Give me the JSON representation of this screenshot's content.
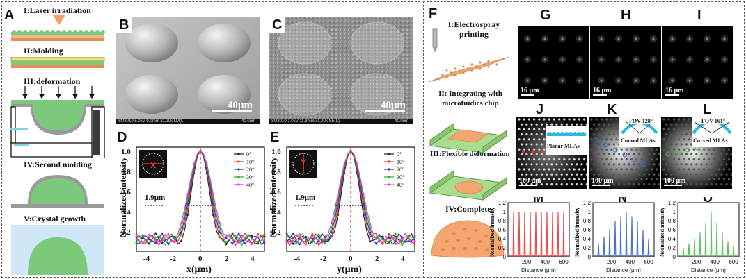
{
  "left_panel": {
    "label_A": "A",
    "steps": [
      "I:Laser irradiation",
      "II:Molding",
      "III:deformation",
      "IV:Second molding",
      "V:Crystal growth"
    ]
  },
  "sem": {
    "label_B": "B",
    "label_C": "C",
    "scale_B": "40μm",
    "scale_C": "40μm",
    "footer_B": "SU8010 5.0kV 9.0mm x1.20k LM(L)",
    "footer_B_right": "40.0um",
    "footer_C": "SU8010 1.0kV 11.3mm x1.20k SE(L)",
    "footer_C_right": "40.0um"
  },
  "intensity_plots": {
    "label_D": "D",
    "label_E": "E",
    "ylabel": "Normalized intensity",
    "xlabel_D": "x(μm)",
    "xlabel_E": "y(μm)",
    "fwhm": "1.9μm",
    "inset_D": "X",
    "inset_E": "Y",
    "xticks": [
      "-4",
      "-2",
      "0",
      "2",
      "4"
    ],
    "yticks": [
      "0.2",
      "0.4",
      "0.6",
      "0.8",
      "1.0"
    ],
    "legend": [
      "0°",
      "10°",
      "20°",
      "30°",
      "40°"
    ],
    "colors": [
      "#222222",
      "#e8321e",
      "#2a2ae0",
      "#19b419",
      "#e040c8"
    ]
  },
  "right_panel": {
    "label_F": "F",
    "steps": [
      "I:Electrospray printing",
      "II: Integrating with microfuidics chip",
      "III:Flexible deformation",
      "IV:Complete"
    ],
    "label_G": "G",
    "label_H": "H",
    "label_I": "I",
    "scale_G": "16 μm",
    "scale_H": "16 μm",
    "scale_I": "16 μm",
    "label_J": "J",
    "label_K": "K",
    "label_L": "L",
    "scale_J": "100 μm",
    "scale_K": "100 μm",
    "scale_L": "100 μm",
    "planar": "Planar MLAs",
    "curved_K": "Curved MLAs",
    "curved_L": "Curved MLAs",
    "fov_K": "FOV 128°",
    "fov_L": "FOV 161°",
    "label_M": "M",
    "label_N": "N",
    "label_O": "O",
    "mno_ylabel": "Normalized intensity",
    "mno_xlabel": "Distance (μm)",
    "mno_yticks": [
      "0",
      "0.2",
      "0.4",
      "0.6",
      "0.8",
      "1",
      "1.2"
    ],
    "mno_xticks": [
      "200",
      "400",
      "600"
    ],
    "mno_colors": [
      "#e84a4a",
      "#4a6fc8",
      "#5fbf5f"
    ]
  },
  "chart_data": [
    {
      "type": "line",
      "panel": "M",
      "xlabel": "Distance (μm)",
      "ylabel": "Normalized intensity",
      "ylim": [
        0,
        1.2
      ],
      "x": [
        60,
        120,
        180,
        240,
        300,
        360,
        420,
        480,
        540,
        600
      ],
      "values": [
        1.0,
        1.0,
        1.0,
        1.0,
        1.0,
        1.0,
        1.0,
        1.0,
        1.0,
        1.0
      ]
    },
    {
      "type": "line",
      "panel": "N",
      "xlabel": "Distance (μm)",
      "ylabel": "Normalized intensity",
      "ylim": [
        0,
        1.2
      ],
      "x": [
        60,
        120,
        180,
        240,
        300,
        360,
        420,
        480,
        540,
        600
      ],
      "values": [
        0.3,
        0.45,
        0.6,
        0.8,
        0.9,
        1.0,
        0.9,
        0.8,
        0.6,
        0.4
      ]
    },
    {
      "type": "line",
      "panel": "O",
      "xlabel": "Distance (μm)",
      "ylabel": "Normalized intensity",
      "ylim": [
        0,
        1.2
      ],
      "x": [
        60,
        120,
        180,
        240,
        300,
        360,
        420,
        480,
        540,
        600
      ],
      "values": [
        0.2,
        0.3,
        0.4,
        0.55,
        0.75,
        1.0,
        0.75,
        0.55,
        0.35,
        0.25
      ]
    }
  ]
}
